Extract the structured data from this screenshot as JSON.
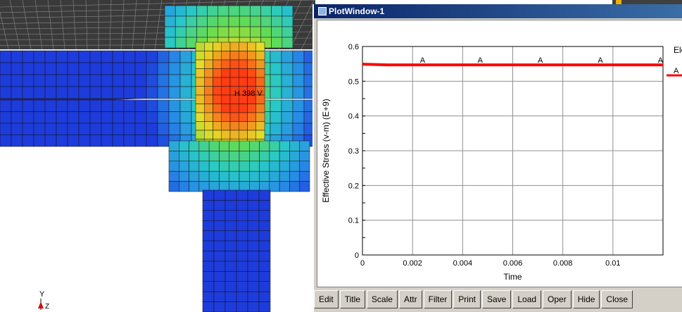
{
  "viewport": {
    "node_label": "H 398 V",
    "axis_y_label": "Y",
    "axis_z_label": "Z"
  },
  "plot_window": {
    "title": "PlotWindow-1",
    "legend_heading": "Eler",
    "legend_marker": "A",
    "toolbar": [
      "Edit",
      "Title",
      "Scale",
      "Attr",
      "Filter",
      "Print",
      "Save",
      "Load",
      "Oper",
      "Hide",
      "Close"
    ]
  },
  "colors": {
    "series": "#ff0000",
    "mesh_cold": "#1e3cdc",
    "mesh_hot": "#ff3010",
    "titlebar": "#0a246a"
  },
  "chart_data": {
    "type": "line",
    "xlabel": "Time",
    "ylabel": "Effective Stress (v-m) (E+9)",
    "xlim": [
      0,
      0.012
    ],
    "ylim": [
      0,
      0.6
    ],
    "x_ticks": [
      "0",
      "0.002",
      "0.004",
      "0.006",
      "0.008",
      "0.01"
    ],
    "y_ticks": [
      "0",
      "0.1",
      "0.2",
      "0.3",
      "0.4",
      "0.5",
      "0.6"
    ],
    "grid": true,
    "legend": "right (clipped)",
    "series": [
      {
        "name": "A",
        "x": [
          0,
          0.001,
          0.0024,
          0.0047,
          0.0071,
          0.0095,
          0.012
        ],
        "y": [
          0.549,
          0.547,
          0.547,
          0.547,
          0.547,
          0.547,
          0.547
        ],
        "marker_x": [
          0.0024,
          0.0047,
          0.0071,
          0.0095,
          0.0119
        ]
      }
    ]
  }
}
